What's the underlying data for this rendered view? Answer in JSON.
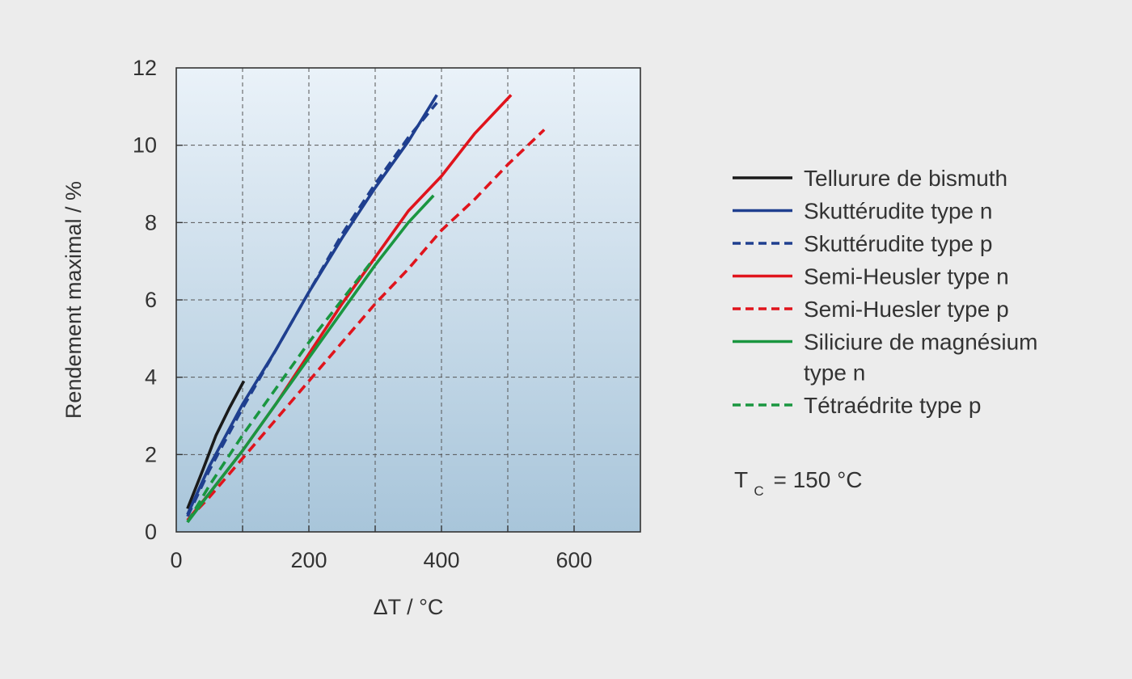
{
  "chart_data": {
    "type": "line",
    "xlabel": "ΔT / °C",
    "ylabel": "Rendement maximal / %",
    "xlim": [
      0,
      700
    ],
    "ylim": [
      0,
      12
    ],
    "x_ticks": [
      0,
      200,
      400,
      600
    ],
    "x_tick_labels": [
      "0",
      "200",
      "400",
      "600"
    ],
    "y_ticks": [
      0,
      2,
      4,
      6,
      8,
      10,
      12
    ],
    "y_tick_labels": [
      "0",
      "2",
      "4",
      "6",
      "8",
      "10",
      "12"
    ],
    "x_grid": [
      100,
      200,
      300,
      400,
      500,
      600
    ],
    "y_grid": [
      2,
      4,
      6,
      8,
      10
    ],
    "grid": true,
    "legend_position": "right",
    "series": [
      {
        "name": "Tellurure de bismuth",
        "color": "#1a1a1a",
        "dash": "solid",
        "points": [
          [
            17,
            0.6
          ],
          [
            40,
            1.6
          ],
          [
            60,
            2.5
          ],
          [
            80,
            3.2
          ],
          [
            102,
            3.9
          ]
        ]
      },
      {
        "name": "Skuttérudite type n",
        "color": "#1f3f8f",
        "dash": "solid",
        "points": [
          [
            17,
            0.45
          ],
          [
            50,
            1.7
          ],
          [
            100,
            3.3
          ],
          [
            150,
            4.7
          ],
          [
            200,
            6.2
          ],
          [
            250,
            7.6
          ],
          [
            300,
            8.9
          ],
          [
            350,
            10.1
          ],
          [
            393,
            11.3
          ]
        ]
      },
      {
        "name": "Skuttérudite type p",
        "color": "#1f3f8f",
        "dash": "dashed",
        "points": [
          [
            17,
            0.4
          ],
          [
            50,
            1.6
          ],
          [
            100,
            3.2
          ],
          [
            150,
            4.7
          ],
          [
            200,
            6.2
          ],
          [
            250,
            7.7
          ],
          [
            300,
            9.0
          ],
          [
            350,
            10.2
          ],
          [
            393,
            11.1
          ]
        ]
      },
      {
        "name": "Semi-Heusler type n",
        "color": "#e0141c",
        "dash": "solid",
        "points": [
          [
            17,
            0.3
          ],
          [
            50,
            1.0
          ],
          [
            100,
            2.1
          ],
          [
            150,
            3.3
          ],
          [
            200,
            4.6
          ],
          [
            250,
            5.9
          ],
          [
            300,
            7.1
          ],
          [
            350,
            8.3
          ],
          [
            400,
            9.2
          ],
          [
            450,
            10.3
          ],
          [
            505,
            11.3
          ]
        ]
      },
      {
        "name": "Semi-Huesler type p",
        "color": "#e0141c",
        "dash": "dashed",
        "points": [
          [
            17,
            0.3
          ],
          [
            50,
            0.9
          ],
          [
            100,
            1.9
          ],
          [
            150,
            2.9
          ],
          [
            200,
            3.9
          ],
          [
            250,
            4.9
          ],
          [
            300,
            5.9
          ],
          [
            350,
            6.8
          ],
          [
            400,
            7.8
          ],
          [
            450,
            8.6
          ],
          [
            500,
            9.5
          ],
          [
            555,
            10.4
          ]
        ]
      },
      {
        "name": "Siliciure de magnésium type n",
        "color": "#1a9640",
        "dash": "solid",
        "points": [
          [
            17,
            0.25
          ],
          [
            50,
            1.0
          ],
          [
            100,
            2.1
          ],
          [
            150,
            3.3
          ],
          [
            200,
            4.5
          ],
          [
            250,
            5.7
          ],
          [
            300,
            6.9
          ],
          [
            350,
            8.0
          ],
          [
            388,
            8.7
          ]
        ]
      },
      {
        "name": "Tétraédrite type p",
        "color": "#1a9640",
        "dash": "dashed",
        "points": [
          [
            17,
            0.25
          ],
          [
            50,
            1.2
          ],
          [
            100,
            2.5
          ],
          [
            150,
            3.7
          ],
          [
            200,
            4.9
          ],
          [
            250,
            6.0
          ],
          [
            295,
            7.0
          ]
        ]
      }
    ],
    "legend_labels": [
      [
        "Tellurure de bismuth"
      ],
      [
        "Skuttérudite type n"
      ],
      [
        "Skuttérudite type p"
      ],
      [
        "Semi-Heusler type n"
      ],
      [
        "Semi-Huesler type p"
      ],
      [
        "Siliciure de magnésium",
        "type n"
      ],
      [
        "Tétraédrite type p"
      ]
    ],
    "annotation": {
      "main": "T",
      "subscript": "C",
      "rest": " = 150 °C"
    }
  }
}
